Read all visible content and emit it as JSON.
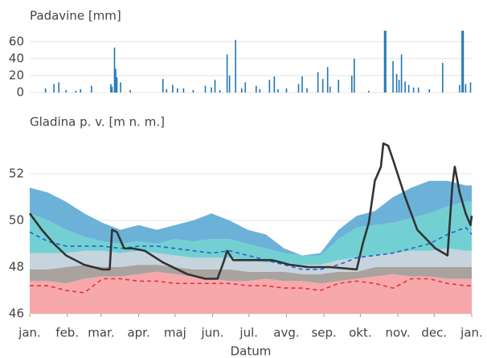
{
  "chart_data": [
    {
      "type": "bar",
      "title": "Padavine [mm]",
      "color": "#1f77b4",
      "x": [
        13,
        20,
        24,
        30,
        38,
        42,
        51,
        67,
        68,
        70,
        71,
        72,
        75,
        83,
        110,
        113,
        118,
        122,
        127,
        135,
        145,
        150,
        153,
        157,
        163,
        165,
        170,
        175,
        178,
        187,
        190,
        198,
        202,
        205,
        212,
        222,
        225,
        229,
        238,
        242,
        246,
        248,
        255,
        266,
        268,
        280,
        293,
        294,
        300,
        303,
        305,
        307,
        310,
        313,
        317,
        321,
        330,
        341,
        355,
        357,
        358,
        360,
        364
      ],
      "values": [
        5,
        10,
        12,
        3,
        2,
        4,
        8,
        10,
        7,
        53,
        28,
        18,
        12,
        3,
        16,
        4,
        9,
        5,
        5,
        3,
        8,
        6,
        15,
        3,
        45,
        20,
        62,
        5,
        12,
        8,
        4,
        15,
        19,
        4,
        5,
        10,
        19,
        5,
        24,
        16,
        30,
        7,
        15,
        20,
        40,
        2,
        73,
        73,
        37,
        22,
        15,
        45,
        13,
        9,
        6,
        6,
        4,
        35,
        9,
        73,
        73,
        10,
        12
      ],
      "xlim": [
        0,
        365
      ],
      "ylim": [
        0,
        75
      ],
      "yticks": [
        0,
        20,
        40,
        60
      ],
      "grid": true
    },
    {
      "type": "band",
      "title": "Gladina p. v. [m n. m.]",
      "x_label": "Datum",
      "x": [
        0,
        15,
        30,
        45,
        60,
        75,
        90,
        105,
        120,
        135,
        150,
        165,
        180,
        195,
        210,
        225,
        240,
        255,
        270,
        285,
        300,
        315,
        330,
        345,
        360,
        365
      ],
      "series": [
        {
          "style": "area",
          "color": "#f7a8ab",
          "values": [
            47.4,
            47.4,
            47.3,
            47.5,
            47.6,
            47.6,
            47.7,
            47.8,
            47.7,
            47.6,
            47.5,
            47.4,
            47.4,
            47.5,
            47.4,
            47.4,
            47.3,
            47.4,
            47.5,
            47.6,
            47.7,
            47.6,
            47.6,
            47.5,
            47.5,
            47.5
          ]
        },
        {
          "style": "area",
          "color": "#a9a29f",
          "values": [
            47.9,
            47.9,
            48.0,
            48.1,
            48.0,
            48.0,
            48.1,
            48.1,
            48.0,
            47.9,
            47.9,
            47.9,
            47.8,
            47.8,
            47.8,
            47.7,
            47.7,
            47.8,
            47.8,
            48.0,
            48.0,
            48.0,
            48.0,
            48.0,
            48.0,
            48.0
          ]
        },
        {
          "style": "area",
          "color": "#c6d4dd",
          "values": [
            48.6,
            48.6,
            48.6,
            48.7,
            48.7,
            48.6,
            48.7,
            48.6,
            48.5,
            48.4,
            48.4,
            48.4,
            48.3,
            48.2,
            48.2,
            48.1,
            48.1,
            48.3,
            48.4,
            48.5,
            48.6,
            48.7,
            48.7,
            48.8,
            48.7,
            48.7
          ]
        },
        {
          "style": "area",
          "color": "#72d0d2",
          "values": [
            50.3,
            50.0,
            49.6,
            49.3,
            49.1,
            49.0,
            49.1,
            49.0,
            49.2,
            49.1,
            49.2,
            49.2,
            49.0,
            48.8,
            48.6,
            48.5,
            48.5,
            49.2,
            49.7,
            49.8,
            49.9,
            50.1,
            50.3,
            50.6,
            50.8,
            50.8
          ]
        },
        {
          "style": "area",
          "color": "#6cb2d8",
          "values": [
            51.4,
            51.2,
            50.8,
            50.3,
            49.9,
            49.6,
            49.8,
            49.6,
            49.8,
            50.0,
            50.3,
            50.0,
            49.6,
            49.4,
            48.8,
            48.5,
            48.6,
            49.6,
            50.2,
            50.4,
            51.0,
            51.4,
            51.7,
            51.7,
            51.5,
            51.5
          ]
        },
        {
          "style": "line",
          "dash": true,
          "color": "#2a5fd0",
          "values": [
            49.5,
            49.1,
            48.9,
            48.9,
            48.9,
            48.8,
            48.9,
            48.9,
            48.8,
            48.7,
            48.6,
            48.7,
            48.5,
            48.3,
            48.1,
            47.9,
            47.9,
            48.1,
            48.4,
            48.5,
            48.6,
            48.8,
            49.0,
            49.4,
            49.7,
            49.4
          ]
        },
        {
          "style": "line",
          "dash": true,
          "color": "#e0363a",
          "values": [
            47.2,
            47.2,
            47.0,
            46.9,
            47.5,
            47.5,
            47.4,
            47.4,
            47.3,
            47.3,
            47.3,
            47.3,
            47.2,
            47.2,
            47.1,
            47.1,
            47.0,
            47.3,
            47.4,
            47.3,
            47.1,
            47.5,
            47.5,
            47.3,
            47.2,
            47.2
          ]
        },
        {
          "style": "line",
          "dash": false,
          "color": "#333333",
          "x": [
            0,
            10,
            20,
            30,
            45,
            60,
            66,
            68,
            72,
            78,
            85,
            95,
            110,
            130,
            145,
            155,
            160,
            163,
            168,
            185,
            200,
            215,
            230,
            248,
            270,
            275,
            280,
            285,
            290,
            292,
            296,
            300,
            310,
            320,
            335,
            345,
            349,
            351,
            355,
            360,
            364,
            365
          ],
          "values": [
            50.3,
            49.6,
            49.0,
            48.5,
            48.1,
            47.9,
            47.9,
            49.6,
            49.5,
            48.8,
            48.8,
            48.7,
            48.2,
            47.7,
            47.5,
            47.5,
            48.2,
            48.7,
            48.3,
            48.3,
            48.3,
            48.1,
            48.0,
            48.0,
            47.9,
            49.0,
            49.9,
            51.7,
            52.3,
            53.3,
            53.2,
            52.6,
            51.0,
            49.6,
            48.8,
            48.5,
            51.5,
            52.3,
            51.2,
            50.3,
            49.8,
            50.2
          ]
        }
      ],
      "xlim": [
        0,
        365
      ],
      "ylim": [
        46,
        53.7
      ],
      "yticks": [
        46,
        48,
        50,
        52
      ],
      "grid": true,
      "xticks": [
        {
          "value": 0,
          "label": "jan."
        },
        {
          "value": 31,
          "label": "feb."
        },
        {
          "value": 59,
          "label": "mar."
        },
        {
          "value": 90,
          "label": "apr."
        },
        {
          "value": 120,
          "label": "maj"
        },
        {
          "value": 151,
          "label": "jun."
        },
        {
          "value": 181,
          "label": "jul."
        },
        {
          "value": 212,
          "label": "avg."
        },
        {
          "value": 243,
          "label": "sep."
        },
        {
          "value": 273,
          "label": "okt."
        },
        {
          "value": 304,
          "label": "nov."
        },
        {
          "value": 334,
          "label": "dec."
        },
        {
          "value": 365,
          "label": "jan."
        }
      ]
    }
  ]
}
